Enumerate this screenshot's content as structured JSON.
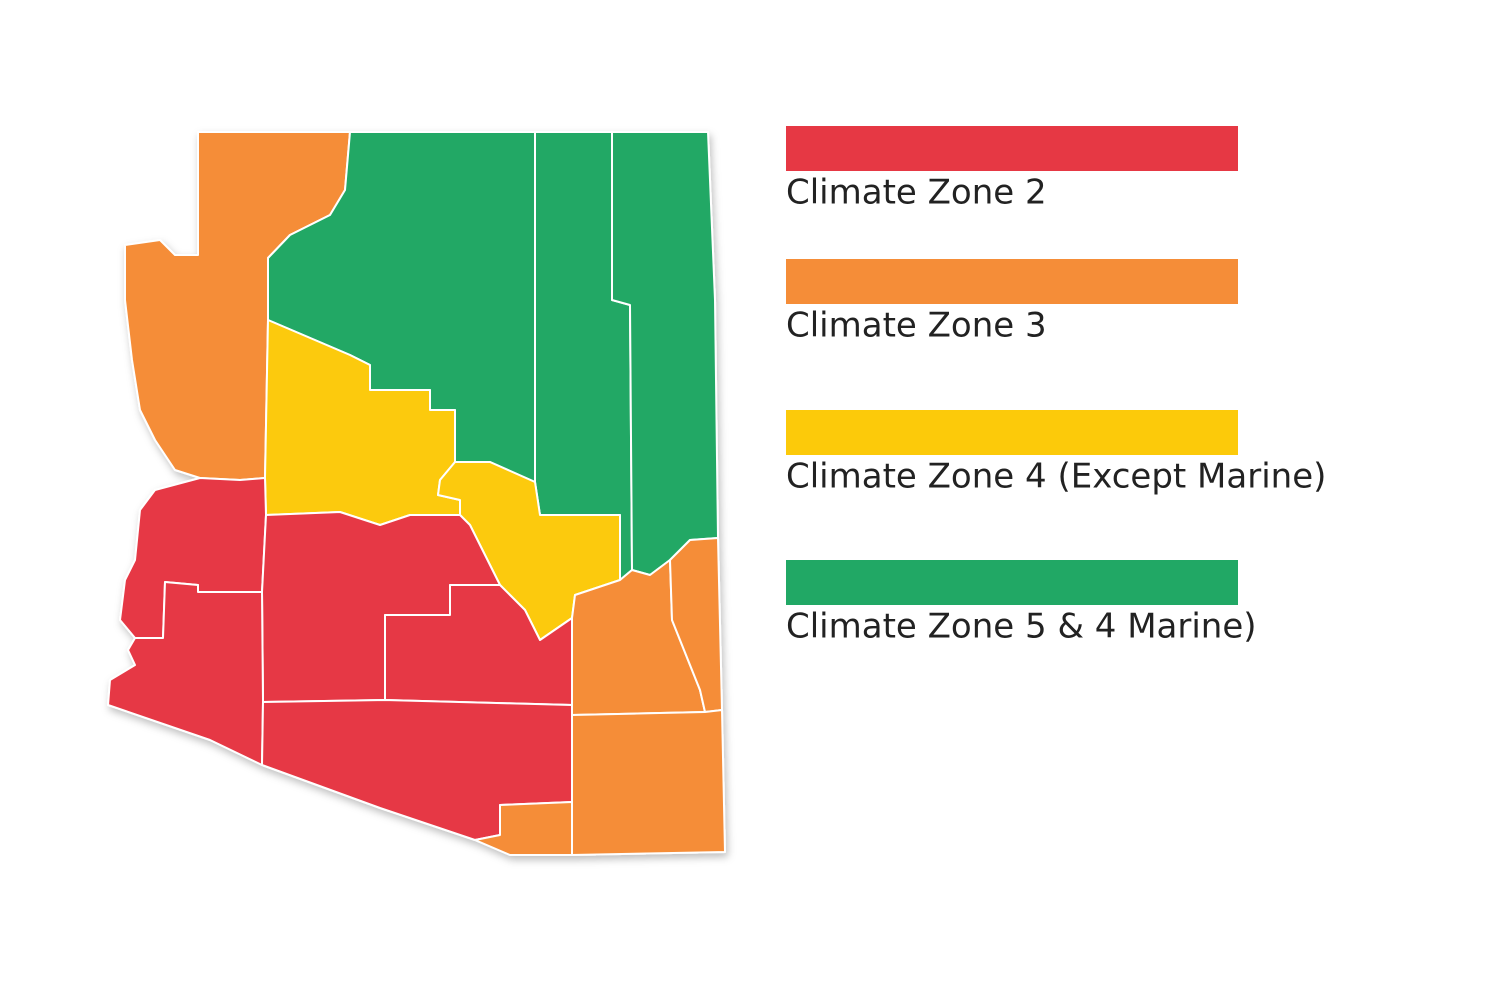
{
  "legend": [
    {
      "label": "Climate Zone 2",
      "color": "#e63844"
    },
    {
      "label": "Climate Zone 3",
      "color": "#f58d38"
    },
    {
      "label": "Climate Zone 4 (Except Marine)",
      "color": "#fcca0a"
    },
    {
      "label": "Climate Zone 5 & 4 Marine)",
      "color": "#21a865"
    }
  ]
}
